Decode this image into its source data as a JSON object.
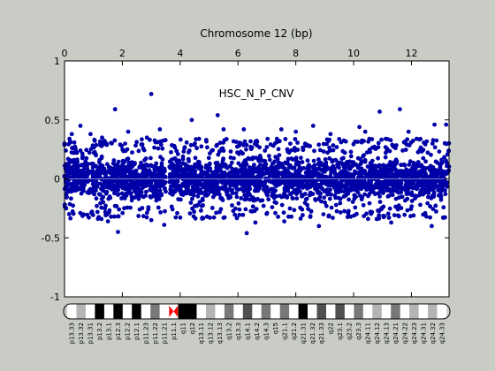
{
  "chart_data": {
    "type": "scatter",
    "title": "Chromosome 12 (bp)",
    "annotation": "HSC_N_P_CNV",
    "xlim": [
      0,
      13.3
    ],
    "ylim": [
      -1,
      1
    ],
    "x_ticks": [
      0,
      2,
      4,
      6,
      8,
      10,
      12
    ],
    "y_ticks": [
      -1,
      -0.5,
      0,
      0.5,
      1
    ],
    "x_tick_labels": [
      "0",
      "2",
      "4",
      "6",
      "8",
      "10",
      "12"
    ],
    "y_tick_labels": [
      "-1",
      "-0.5",
      "0",
      "0.5",
      "1"
    ],
    "x_axis_position": "top",
    "grid": false,
    "reference_line_y": 0,
    "gap": [
      3.5,
      3.62
    ],
    "marker_color": "#0000a8",
    "reference_line_color": "#8080c0",
    "series": [
      {
        "points_approx": [
          [
            0.0,
            0.3
          ],
          [
            0.25,
            0.38
          ],
          [
            0.55,
            0.45
          ],
          [
            0.9,
            0.38
          ],
          [
            1.3,
            0.35
          ],
          [
            1.75,
            0.59
          ],
          [
            2.2,
            0.4
          ],
          [
            2.85,
            0.35
          ],
          [
            3.0,
            0.72
          ],
          [
            3.3,
            0.42
          ],
          [
            4.4,
            0.5
          ],
          [
            5.3,
            0.54
          ],
          [
            5.5,
            0.42
          ],
          [
            6.2,
            0.42
          ],
          [
            7.5,
            0.42
          ],
          [
            8.0,
            0.4
          ],
          [
            8.6,
            0.45
          ],
          [
            9.2,
            0.38
          ],
          [
            10.2,
            0.44
          ],
          [
            10.4,
            0.4
          ],
          [
            10.9,
            0.57
          ],
          [
            11.6,
            0.59
          ],
          [
            11.9,
            0.4
          ],
          [
            12.8,
            0.46
          ],
          [
            13.2,
            0.46
          ],
          [
            1.5,
            -0.36
          ],
          [
            1.85,
            -0.45
          ],
          [
            3.0,
            -0.35
          ],
          [
            3.45,
            -0.39
          ],
          [
            5.5,
            -0.33
          ],
          [
            6.3,
            -0.46
          ],
          [
            6.6,
            -0.37
          ],
          [
            7.6,
            -0.36
          ],
          [
            8.8,
            -0.4
          ],
          [
            10.8,
            -0.34
          ],
          [
            11.3,
            -0.37
          ],
          [
            12.7,
            -0.4
          ],
          [
            13.1,
            -0.33
          ]
        ],
        "band_range_approx": [
          -0.25,
          0.25
        ]
      }
    ]
  },
  "ideogram": {
    "bands": [
      {
        "label": "p13.33",
        "color": "#ffffff"
      },
      {
        "label": "p13.32",
        "color": "#b4b4b4"
      },
      {
        "label": "p13.31",
        "color": "#ffffff"
      },
      {
        "label": "p13.2",
        "color": "#000000"
      },
      {
        "label": "p13.1",
        "color": "#ffffff"
      },
      {
        "label": "p12.3",
        "color": "#000000"
      },
      {
        "label": "p12.2",
        "color": "#ffffff"
      },
      {
        "label": "p12.1",
        "color": "#000000"
      },
      {
        "label": "p11.23",
        "color": "#ffffff"
      },
      {
        "label": "p11.22",
        "color": "#787878"
      },
      {
        "label": "p11.21",
        "color": "#ffffff"
      },
      {
        "label": "p11.1",
        "color": "#ffffff"
      },
      {
        "label": "q11",
        "color": "#000000"
      },
      {
        "label": "q12",
        "color": "#000000"
      },
      {
        "label": "q13.11",
        "color": "#ffffff"
      },
      {
        "label": "q13.12",
        "color": "#b4b4b4"
      },
      {
        "label": "q13.13",
        "color": "#ffffff"
      },
      {
        "label": "q13.2",
        "color": "#787878"
      },
      {
        "label": "q13.3",
        "color": "#ffffff"
      },
      {
        "label": "q14.1",
        "color": "#505050"
      },
      {
        "label": "q14.2",
        "color": "#ffffff"
      },
      {
        "label": "q14.3",
        "color": "#787878"
      },
      {
        "label": "q15",
        "color": "#ffffff"
      },
      {
        "label": "q21.1",
        "color": "#787878"
      },
      {
        "label": "q21.2",
        "color": "#ffffff"
      },
      {
        "label": "q21.31",
        "color": "#000000"
      },
      {
        "label": "q21.32",
        "color": "#ffffff"
      },
      {
        "label": "q21.33",
        "color": "#505050"
      },
      {
        "label": "q22",
        "color": "#ffffff"
      },
      {
        "label": "q23.1",
        "color": "#505050"
      },
      {
        "label": "q23.2",
        "color": "#ffffff"
      },
      {
        "label": "q23.3",
        "color": "#787878"
      },
      {
        "label": "q24.11",
        "color": "#ffffff"
      },
      {
        "label": "q24.12",
        "color": "#b4b4b4"
      },
      {
        "label": "q24.13",
        "color": "#ffffff"
      },
      {
        "label": "q24.21",
        "color": "#787878"
      },
      {
        "label": "q24.22",
        "color": "#ffffff"
      },
      {
        "label": "q24.23",
        "color": "#b4b4b4"
      },
      {
        "label": "q24.31",
        "color": "#ffffff"
      },
      {
        "label": "q24.32",
        "color": "#b4b4b4"
      },
      {
        "label": "q24.33",
        "color": "#ffffff"
      }
    ],
    "centromere_color": "#ff0000"
  }
}
